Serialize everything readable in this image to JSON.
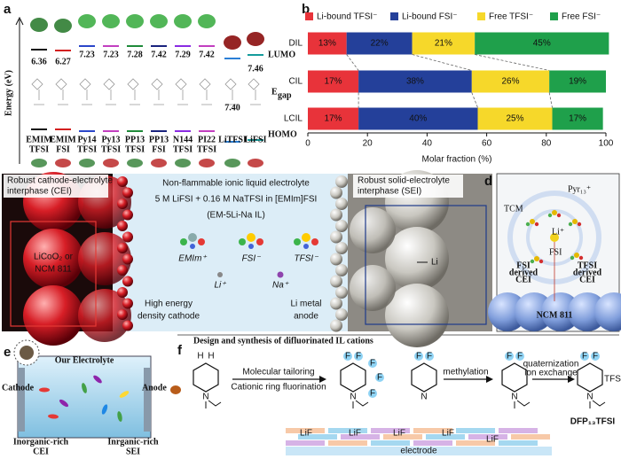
{
  "panels": {
    "a": {
      "label": "a",
      "y_axis": "Energy (eV)",
      "lumo": "LUMO",
      "egap": "E",
      "egap_sub": "gap",
      "homo": "HOMO",
      "columns": [
        {
          "name": [
            "EMIM",
            "TFSI"
          ],
          "gap": "6.36"
        },
        {
          "name": [
            "EMIM",
            "FSI"
          ],
          "gap": "6.27"
        },
        {
          "name": [
            "Py14",
            "TFSI"
          ],
          "gap": "7.23"
        },
        {
          "name": [
            "Py13",
            "TFSI"
          ],
          "gap": "7.23"
        },
        {
          "name": [
            "PP13",
            "TFSI"
          ],
          "gap": "7.28"
        },
        {
          "name": [
            "PP13",
            "FSI"
          ],
          "gap": "7.42"
        },
        {
          "name": [
            "N144",
            "TFSI"
          ],
          "gap": "7.29"
        },
        {
          "name": [
            "PI22",
            "TFSI"
          ],
          "gap": "7.42"
        },
        {
          "name": [
            "LiTFSI"
          ],
          "gap": "7.40"
        },
        {
          "name": [
            "LiFSI"
          ],
          "gap": "7.46"
        }
      ]
    },
    "b": {
      "label": "b"
    },
    "c": {
      "label": "c",
      "cei": [
        "Robust cathode-electrolyte",
        "interphase (CEI)"
      ],
      "title": "Non-flammable ionic liquid electrolyte",
      "recipe": "5 M LiFSI + 0.16 M NaTFSI in [EMIm]FSI",
      "abbr": "(EM-5Li-Na IL)",
      "ions": [
        "EMIm⁺",
        "FSI⁻",
        "TFSI⁻",
        "Li⁺",
        "Na⁺"
      ],
      "cathode": [
        "LiCoO₂ or",
        "NCM 811"
      ],
      "cathode_caption": [
        "High energy",
        "density cathode"
      ],
      "anode_caption": [
        "Li metal",
        "anode"
      ],
      "sei": [
        "Robust solid-electrolyte",
        "interphase (SEI)"
      ],
      "li": "Li"
    },
    "d": {
      "label": "d",
      "pyr": "Pyr₁₃⁺",
      "tcm": "TCM",
      "li": "Li⁺",
      "fsi": "FSI",
      "fsi_cei": [
        "FSI",
        "derived",
        "CEI"
      ],
      "tfsi_cei": [
        "TFSI",
        "derived",
        "CEI"
      ],
      "ncm": "NCM 811"
    },
    "e": {
      "label": "e",
      "title": "Our Electrolyte",
      "cathode": "Cathode",
      "anode": "Anode",
      "cei": [
        "Inorganic-rich",
        "CEI"
      ],
      "sei": [
        "Inrganic-rich",
        "SEI"
      ]
    },
    "f": {
      "label": "f",
      "title": "Design and synthesis of difluorinated IL cations",
      "step1": "Molecular tailoring",
      "step1b": "Cationic ring fluorination",
      "step2": "methylation",
      "step3": [
        "quaternization",
        "ion exchange"
      ],
      "anion": "TFSI⁻",
      "product": "DFP₁₃TFSI",
      "atoms": {
        "F": "F",
        "N": "N",
        "H": "H"
      },
      "lif": "LiF",
      "electrode": "electrode"
    }
  },
  "chart_data": {
    "type": "bar",
    "orientation": "horizontal",
    "stacked": true,
    "categories": [
      "DIL",
      "CIL",
      "LCIL"
    ],
    "series": [
      {
        "name": "Li-bound TFSI⁻",
        "color": "#e8333a",
        "values": [
          13,
          17,
          17
        ],
        "value_labels": [
          "13%",
          "17%",
          "17%"
        ]
      },
      {
        "name": "Li-bound FSI⁻",
        "color": "#24409a",
        "values": [
          22,
          38,
          40
        ],
        "value_labels": [
          "22%",
          "38%",
          "40%"
        ]
      },
      {
        "name": "Free TFSI⁻",
        "color": "#f6d82a",
        "values": [
          21,
          26,
          25
        ],
        "value_labels": [
          "21%",
          "26%",
          "25%"
        ]
      },
      {
        "name": "Free FSI⁻",
        "color": "#1fa04b",
        "values": [
          45,
          19,
          17
        ],
        "value_labels": [
          "45%",
          "19%",
          "17%"
        ]
      }
    ],
    "xlabel": "Molar fraction (%)",
    "xlim": [
      0,
      100
    ],
    "xticks": [
      0,
      20,
      40,
      60,
      80,
      100
    ],
    "legend": "top"
  }
}
